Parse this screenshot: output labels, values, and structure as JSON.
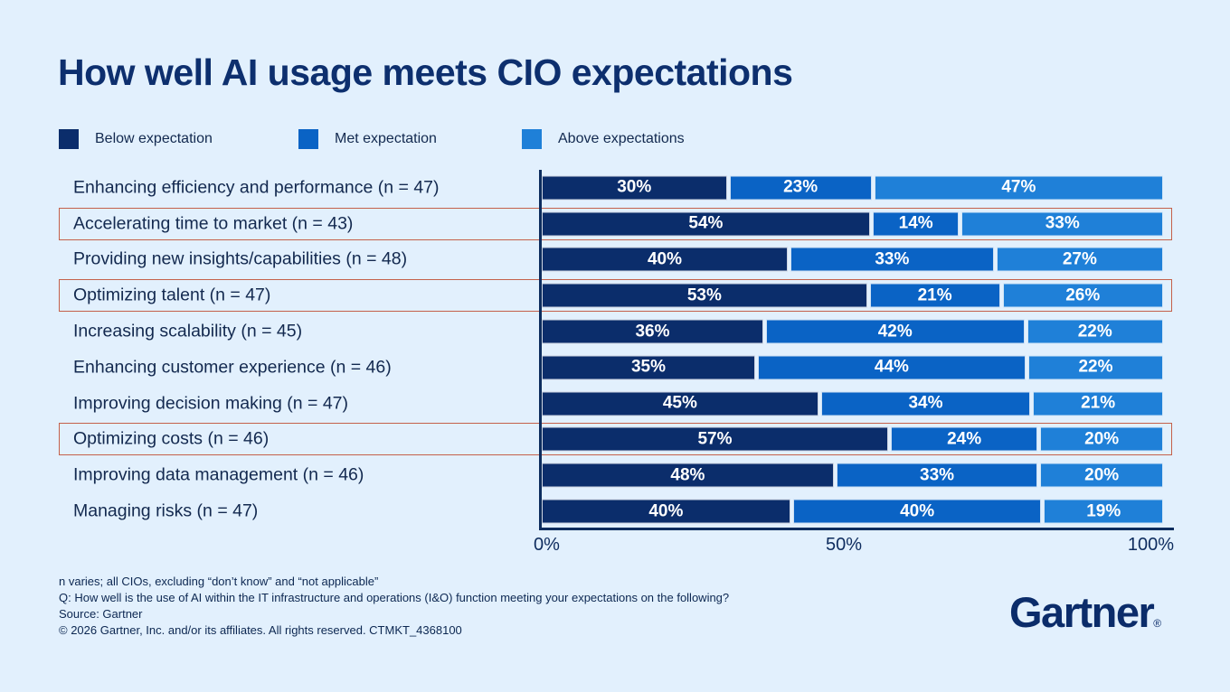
{
  "page": {
    "title": "How well AI usage meets CIO expectations"
  },
  "legend": [
    {
      "label": "Below expectation",
      "color": "#0b2d6b"
    },
    {
      "label": "Met expectation",
      "color": "#0a63c5"
    },
    {
      "label": "Above expectations",
      "color": "#1f80d8"
    }
  ],
  "chart_data": {
    "type": "bar",
    "orientation": "horizontal",
    "stacked": true,
    "title": "How well AI usage meets CIO expectations",
    "value_suffix": "%",
    "xlim": [
      0,
      100
    ],
    "x_ticks": [
      "0%",
      "50%",
      "100%"
    ],
    "legend_position": "top",
    "grid": false,
    "categories": [
      "Enhancing efficiency and performance (n = 47)",
      "Accelerating time to market (n = 43)",
      "Providing new insights/capabilities (n = 48)",
      "Optimizing talent (n = 47)",
      "Increasing scalability (n = 45)",
      "Enhancing customer experience (n = 46)",
      "Improving decision making (n = 47)",
      "Optimizing costs (n = 46)",
      "Improving data management (n = 46)",
      "Managing risks (n = 47)"
    ],
    "series": [
      {
        "key": "below",
        "name": "Below expectation",
        "color": "#0b2d6b",
        "values": [
          30,
          54,
          40,
          53,
          36,
          35,
          45,
          57,
          48,
          40
        ]
      },
      {
        "key": "met",
        "name": "Met expectation",
        "color": "#0a63c5",
        "values": [
          23,
          14,
          33,
          21,
          42,
          44,
          34,
          24,
          33,
          40
        ]
      },
      {
        "key": "above",
        "name": "Above expectations",
        "color": "#1f80d8",
        "values": [
          47,
          33,
          27,
          26,
          22,
          22,
          21,
          20,
          20,
          19
        ]
      }
    ],
    "highlighted_rows": [
      1,
      3,
      7
    ],
    "highlight_color": "#c4604a"
  },
  "footer": {
    "lines": [
      "n varies; all CIOs, excluding “don’t know” and “not applicable”",
      "Q: How well is the use of AI within the IT infrastructure and operations (I&O) function meeting your expectations on the following?",
      "Source: Gartner",
      "© 2026 Gartner, Inc. and/or its affiliates. All rights reserved. CTMKT_4368100"
    ]
  },
  "logo": {
    "text": "Gartner",
    "registered": "®"
  }
}
